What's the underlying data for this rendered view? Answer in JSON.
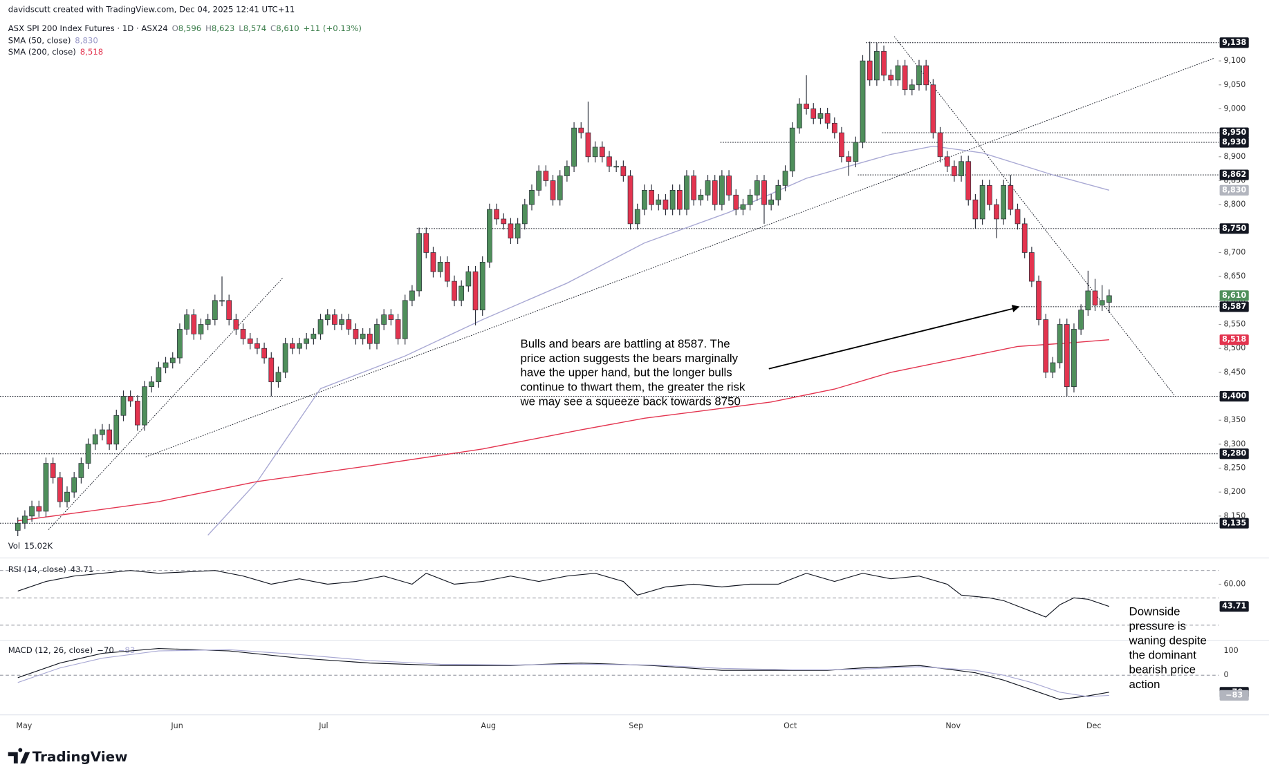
{
  "chart_data": {
    "type": "candlestick",
    "header": {
      "author": "davidscutt created with TradingView.com, Dec 04, 2025 12:41 UTC+11",
      "symbol": "ASX SPI 200 Index Futures · 1D · ASX24",
      "ohlc": [
        {
          "key": "O",
          "value": "8,596"
        },
        {
          "key": "H",
          "value": "8,623"
        },
        {
          "key": "L",
          "value": "8,574"
        },
        {
          "key": "C",
          "value": "8,610"
        }
      ],
      "change": "+11 (+0.13%)",
      "volume_name": "Vol",
      "volume_value": "15.02K"
    },
    "up_color": "#4f8f5b",
    "down_color": "#e3344f",
    "ylim": [
      8108,
      9151
    ],
    "yticks": [
      {
        "value": 8150,
        "label": "8,150"
      },
      {
        "value": 8200,
        "label": "8,200"
      },
      {
        "value": 8250,
        "label": "8,250"
      },
      {
        "value": 8300,
        "label": "8,300"
      },
      {
        "value": 8350,
        "label": "8,350"
      },
      {
        "value": 8400,
        "label": "8,400"
      },
      {
        "value": 8450,
        "label": "8,450"
      },
      {
        "value": 8500,
        "label": "8,500"
      },
      {
        "value": 8550,
        "label": "8,550"
      },
      {
        "value": 8600,
        "label": "8,600"
      },
      {
        "value": 8650,
        "label": "8,650"
      },
      {
        "value": 8700,
        "label": "8,700"
      },
      {
        "value": 8750,
        "label": "8,750"
      },
      {
        "value": 8800,
        "label": "8,800"
      },
      {
        "value": 8850,
        "label": "8,850"
      },
      {
        "value": 8900,
        "label": "8,900"
      },
      {
        "value": 8950,
        "label": "8,950"
      },
      {
        "value": 9000,
        "label": "9,000"
      },
      {
        "value": 9050,
        "label": "9,050"
      },
      {
        "value": 9100,
        "label": "9,100"
      }
    ],
    "months": [
      "May",
      "Jun",
      "Jul",
      "Aug",
      "Sep",
      "Oct",
      "Nov",
      "Dec"
    ],
    "candles": [
      [
        8120,
        8147,
        8108,
        8135
      ],
      [
        8135,
        8162,
        8123,
        8150
      ],
      [
        8150,
        8182,
        8138,
        8170
      ],
      [
        8170,
        8182,
        8148,
        8160
      ],
      [
        8160,
        8272,
        8148,
        8260
      ],
      [
        8260,
        8272,
        8218,
        8230
      ],
      [
        8230,
        8242,
        8168,
        8180
      ],
      [
        8180,
        8212,
        8168,
        8200
      ],
      [
        8200,
        8242,
        8188,
        8230
      ],
      [
        8230,
        8272,
        8218,
        8260
      ],
      [
        8260,
        8312,
        8248,
        8300
      ],
      [
        8300,
        8332,
        8288,
        8320
      ],
      [
        8320,
        8342,
        8308,
        8330
      ],
      [
        8330,
        8342,
        8288,
        8300
      ],
      [
        8300,
        8372,
        8288,
        8360
      ],
      [
        8360,
        8412,
        8348,
        8400
      ],
      [
        8400,
        8412,
        8378,
        8390
      ],
      [
        8390,
        8402,
        8328,
        8340
      ],
      [
        8340,
        8432,
        8328,
        8420
      ],
      [
        8420,
        8442,
        8408,
        8430
      ],
      [
        8430,
        8472,
        8418,
        8460
      ],
      [
        8460,
        8482,
        8448,
        8470
      ],
      [
        8470,
        8492,
        8458,
        8480
      ],
      [
        8480,
        8552,
        8468,
        8540
      ],
      [
        8540,
        8582,
        8528,
        8570
      ],
      [
        8570,
        8582,
        8518,
        8530
      ],
      [
        8530,
        8562,
        8518,
        8550
      ],
      [
        8550,
        8572,
        8538,
        8560
      ],
      [
        8560,
        8612,
        8548,
        8600
      ],
      [
        8600,
        8650,
        8588,
        8600
      ],
      [
        8600,
        8612,
        8548,
        8560
      ],
      [
        8560,
        8572,
        8528,
        8540
      ],
      [
        8540,
        8552,
        8508,
        8520
      ],
      [
        8520,
        8532,
        8498,
        8510
      ],
      [
        8510,
        8522,
        8488,
        8500
      ],
      [
        8500,
        8512,
        8468,
        8480
      ],
      [
        8480,
        8492,
        8400,
        8430
      ],
      [
        8430,
        8462,
        8418,
        8450
      ],
      [
        8450,
        8522,
        8438,
        8510
      ],
      [
        8510,
        8522,
        8488,
        8500
      ],
      [
        8500,
        8522,
        8488,
        8510
      ],
      [
        8510,
        8532,
        8498,
        8520
      ],
      [
        8520,
        8542,
        8508,
        8530
      ],
      [
        8530,
        8572,
        8518,
        8560
      ],
      [
        8560,
        8582,
        8548,
        8570
      ],
      [
        8570,
        8582,
        8538,
        8550
      ],
      [
        8550,
        8572,
        8538,
        8560
      ],
      [
        8560,
        8572,
        8528,
        8540
      ],
      [
        8540,
        8552,
        8508,
        8520
      ],
      [
        8520,
        8542,
        8508,
        8530
      ],
      [
        8530,
        8542,
        8498,
        8510
      ],
      [
        8510,
        8562,
        8498,
        8550
      ],
      [
        8550,
        8582,
        8538,
        8570
      ],
      [
        8570,
        8582,
        8548,
        8560
      ],
      [
        8560,
        8572,
        8508,
        8520
      ],
      [
        8520,
        8612,
        8508,
        8600
      ],
      [
        8600,
        8632,
        8588,
        8620
      ],
      [
        8620,
        8752,
        8608,
        8740
      ],
      [
        8740,
        8752,
        8688,
        8700
      ],
      [
        8700,
        8712,
        8648,
        8660
      ],
      [
        8660,
        8692,
        8648,
        8680
      ],
      [
        8680,
        8692,
        8628,
        8640
      ],
      [
        8640,
        8652,
        8588,
        8600
      ],
      [
        8600,
        8642,
        8588,
        8630
      ],
      [
        8630,
        8672,
        8618,
        8660
      ],
      [
        8660,
        8672,
        8548,
        8580
      ],
      [
        8580,
        8692,
        8568,
        8680
      ],
      [
        8680,
        8802,
        8668,
        8790
      ],
      [
        8790,
        8802,
        8758,
        8770
      ],
      [
        8770,
        8782,
        8748,
        8760
      ],
      [
        8760,
        8772,
        8718,
        8730
      ],
      [
        8730,
        8772,
        8718,
        8760
      ],
      [
        8760,
        8812,
        8748,
        8800
      ],
      [
        8800,
        8842,
        8788,
        8830
      ],
      [
        8830,
        8882,
        8818,
        8870
      ],
      [
        8870,
        8882,
        8838,
        8850
      ],
      [
        8850,
        8862,
        8798,
        8810
      ],
      [
        8810,
        8872,
        8798,
        8860
      ],
      [
        8860,
        8892,
        8848,
        8880
      ],
      [
        8880,
        8972,
        8868,
        8960
      ],
      [
        8960,
        8972,
        8938,
        8950
      ],
      [
        8950,
        9015,
        8888,
        8900
      ],
      [
        8900,
        8932,
        8888,
        8920
      ],
      [
        8920,
        8932,
        8888,
        8900
      ],
      [
        8900,
        8912,
        8868,
        8880
      ],
      [
        8880,
        8892,
        8868,
        8880
      ],
      [
        8880,
        8892,
        8848,
        8860
      ],
      [
        8860,
        8872,
        8748,
        8760
      ],
      [
        8760,
        8802,
        8748,
        8790
      ],
      [
        8790,
        8842,
        8778,
        8830
      ],
      [
        8830,
        8842,
        8788,
        8800
      ],
      [
        8800,
        8822,
        8788,
        8810
      ],
      [
        8810,
        8822,
        8778,
        8790
      ],
      [
        8790,
        8842,
        8778,
        8830
      ],
      [
        8830,
        8842,
        8778,
        8790
      ],
      [
        8790,
        8872,
        8778,
        8860
      ],
      [
        8860,
        8872,
        8798,
        8810
      ],
      [
        8810,
        8832,
        8798,
        8820
      ],
      [
        8820,
        8862,
        8808,
        8850
      ],
      [
        8850,
        8862,
        8788,
        8800
      ],
      [
        8800,
        8872,
        8788,
        8860
      ],
      [
        8860,
        8872,
        8808,
        8820
      ],
      [
        8820,
        8832,
        8778,
        8790
      ],
      [
        8790,
        8812,
        8778,
        8800
      ],
      [
        8800,
        8832,
        8788,
        8820
      ],
      [
        8820,
        8862,
        8808,
        8850
      ],
      [
        8850,
        8862,
        8760,
        8800
      ],
      [
        8800,
        8822,
        8788,
        8810
      ],
      [
        8810,
        8852,
        8798,
        8840
      ],
      [
        8840,
        8882,
        8828,
        8870
      ],
      [
        8870,
        8972,
        8858,
        8960
      ],
      [
        8960,
        9022,
        8948,
        9010
      ],
      [
        9010,
        9070,
        8988,
        9000
      ],
      [
        9000,
        9012,
        8968,
        8980
      ],
      [
        8980,
        9002,
        8968,
        8990
      ],
      [
        8990,
        9002,
        8958,
        8970
      ],
      [
        8970,
        8982,
        8938,
        8950
      ],
      [
        8950,
        8962,
        8888,
        8900
      ],
      [
        8900,
        8912,
        8860,
        8890
      ],
      [
        8890,
        8942,
        8878,
        8930
      ],
      [
        8930,
        9112,
        8918,
        9100
      ],
      [
        9100,
        9140,
        9048,
        9060
      ],
      [
        9060,
        9138,
        9048,
        9120
      ],
      [
        9120,
        9132,
        9058,
        9070
      ],
      [
        9070,
        9082,
        9048,
        9060
      ],
      [
        9060,
        9102,
        9048,
        9090
      ],
      [
        9090,
        9102,
        9028,
        9040
      ],
      [
        9040,
        9062,
        9028,
        9050
      ],
      [
        9050,
        9102,
        9038,
        9090
      ],
      [
        9090,
        9102,
        9038,
        9050
      ],
      [
        9050,
        9062,
        8938,
        8950
      ],
      [
        8950,
        8962,
        8888,
        8900
      ],
      [
        8900,
        8912,
        8868,
        8880
      ],
      [
        8880,
        8892,
        8848,
        8860
      ],
      [
        8860,
        8902,
        8848,
        8890
      ],
      [
        8890,
        8902,
        8798,
        8810
      ],
      [
        8810,
        8822,
        8750,
        8770
      ],
      [
        8770,
        8852,
        8758,
        8840
      ],
      [
        8840,
        8852,
        8788,
        8800
      ],
      [
        8800,
        8812,
        8730,
        8770
      ],
      [
        8770,
        8852,
        8758,
        8840
      ],
      [
        8840,
        8862,
        8778,
        8790
      ],
      [
        8790,
        8802,
        8748,
        8760
      ],
      [
        8760,
        8772,
        8688,
        8700
      ],
      [
        8700,
        8712,
        8628,
        8640
      ],
      [
        8640,
        8652,
        8548,
        8560
      ],
      [
        8560,
        8572,
        8438,
        8450
      ],
      [
        8450,
        8482,
        8438,
        8470
      ],
      [
        8470,
        8562,
        8458,
        8550
      ],
      [
        8550,
        8562,
        8400,
        8420
      ],
      [
        8420,
        8552,
        8408,
        8540
      ],
      [
        8540,
        8592,
        8528,
        8580
      ],
      [
        8580,
        8662,
        8568,
        8620
      ],
      [
        8620,
        8645,
        8578,
        8590
      ],
      [
        8590,
        8632,
        8578,
        8600
      ],
      [
        8596,
        8623,
        8574,
        8610
      ]
    ],
    "last_label": "8,610",
    "series": [
      {
        "name": "SMA (50, close)",
        "color": "#a9a9d4",
        "tag_color": "#b2b5be",
        "legend_value": "8,830",
        "x": [
          27,
          34,
          43,
          55,
          66,
          78,
          89,
          101,
          112,
          124,
          130,
          137,
          147,
          155
        ],
        "values": [
          8110,
          8222,
          8416,
          8484,
          8560,
          8636,
          8720,
          8784,
          8855,
          8905,
          8922,
          8908,
          8862,
          8830
        ]
      },
      {
        "name": "SMA (200, close)",
        "color": "#e3344f",
        "tag_color": "#e3344f",
        "legend_value": "8,518",
        "x": [
          0,
          9,
          20,
          34,
          50,
          66,
          80,
          89,
          107,
          116,
          124,
          134,
          142,
          150,
          155
        ],
        "values": [
          8140,
          8158,
          8180,
          8222,
          8255,
          8290,
          8330,
          8354,
          8388,
          8415,
          8450,
          8480,
          8504,
          8512,
          8518
        ]
      }
    ],
    "levels": [
      {
        "value": 9138,
        "label": "9,138"
      },
      {
        "value": 8950,
        "label": "8,950"
      },
      {
        "value": 8930,
        "label": "8,930"
      },
      {
        "value": 8862,
        "label": "8,862"
      },
      {
        "value": 8750,
        "label": "8,750"
      },
      {
        "value": 8587,
        "label": "8,587"
      },
      {
        "value": 8400,
        "label": "8,400"
      },
      {
        "value": 8280,
        "label": "8,280"
      },
      {
        "value": 8135,
        "label": "8,135"
      }
    ],
    "rsi": {
      "name": "RSI (14, close)",
      "value_label": "43.71",
      "color": "#131722",
      "ylim": [
        20,
        78
      ],
      "yticks": [
        {
          "value": 60,
          "label": "60.00"
        }
      ],
      "bands": [
        70,
        50,
        30
      ],
      "x": [
        0,
        4,
        8,
        12,
        16,
        20,
        24,
        28,
        32,
        36,
        40,
        44,
        48,
        52,
        56,
        58,
        62,
        66,
        70,
        74,
        78,
        82,
        86,
        88,
        92,
        96,
        100,
        104,
        108,
        112,
        116,
        120,
        124,
        128,
        132,
        134,
        138,
        140,
        144,
        146,
        148,
        150,
        152,
        155
      ],
      "values": [
        55,
        62,
        66,
        68,
        70,
        68,
        69,
        70,
        66,
        60,
        64,
        60,
        62,
        66,
        60,
        68,
        60,
        62,
        66,
        62,
        66,
        68,
        62,
        52,
        58,
        60,
        58,
        60,
        60,
        68,
        62,
        68,
        64,
        66,
        60,
        52,
        50,
        48,
        40,
        36,
        45,
        50,
        49,
        43.71
      ]
    },
    "macd": {
      "name": "MACD (12, 26, close)",
      "ylim": [
        -150,
        133
      ],
      "yticks": [
        100,
        0
      ],
      "x": [
        0,
        6,
        12,
        20,
        30,
        40,
        50,
        60,
        70,
        80,
        90,
        100,
        110,
        115,
        120,
        128,
        136,
        140,
        144,
        148,
        152,
        155
      ],
      "series": [
        {
          "color": "#131722",
          "value_label": "−70",
          "values": [
            -10,
            50,
            90,
            110,
            100,
            70,
            50,
            40,
            40,
            50,
            40,
            20,
            20,
            20,
            30,
            40,
            10,
            -20,
            -60,
            -100,
            -85,
            -70
          ]
        },
        {
          "color": "#a9a9d4",
          "value_label": "−83",
          "values": [
            -30,
            30,
            70,
            100,
            105,
            85,
            60,
            45,
            42,
            45,
            42,
            28,
            22,
            22,
            25,
            35,
            20,
            0,
            -30,
            -70,
            -88,
            -83
          ]
        }
      ]
    },
    "annotations": [
      [
        "Bulls and bears are battling at 8587. The",
        "price action suggests the bears marginally",
        "have the upper hand, but the longer bulls",
        "continue to thwart them, the greater the risk",
        "we may see a squeeze back towards 8750"
      ],
      [
        "Downside",
        "pressure is",
        "waning despite",
        "the dominant",
        "bearish price",
        "action"
      ]
    ],
    "brand": "TradingView"
  }
}
